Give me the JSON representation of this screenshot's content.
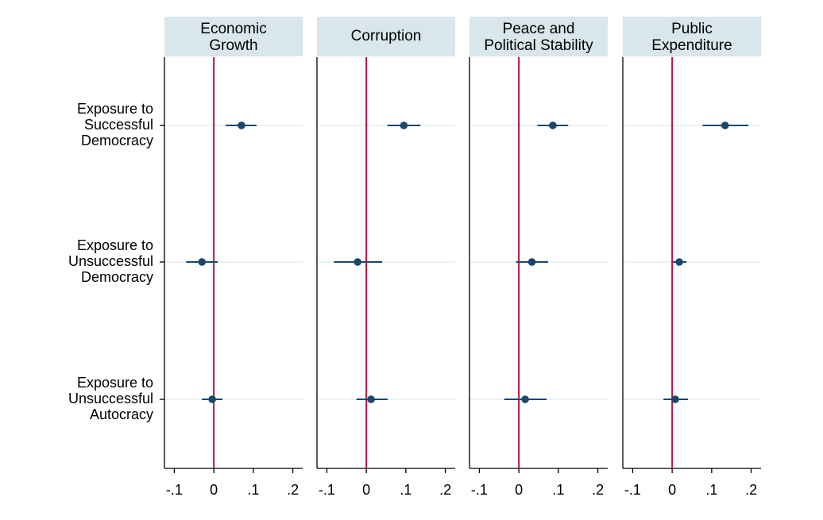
{
  "chart_data": {
    "type": "scatter",
    "subtype": "coefficient-plot",
    "panels": [
      {
        "title_lines": [
          "Economic",
          "Growth"
        ],
        "points": [
          {
            "estimate": 0.07,
            "ci": [
              0.03,
              0.108
            ]
          },
          {
            "estimate": -0.03,
            "ci": [
              -0.07,
              0.01
            ]
          },
          {
            "estimate": -0.004,
            "ci": [
              -0.03,
              0.022
            ]
          }
        ]
      },
      {
        "title_lines": [
          "Corruption"
        ],
        "points": [
          {
            "estimate": 0.095,
            "ci": [
              0.053,
              0.137
            ]
          },
          {
            "estimate": -0.022,
            "ci": [
              -0.082,
              0.04
            ]
          },
          {
            "estimate": 0.012,
            "ci": [
              -0.025,
              0.054
            ]
          }
        ]
      },
      {
        "title_lines": [
          "Peace and",
          "Political Stability"
        ],
        "points": [
          {
            "estimate": 0.086,
            "ci": [
              0.047,
              0.125
            ]
          },
          {
            "estimate": 0.033,
            "ci": [
              -0.007,
              0.074
            ]
          },
          {
            "estimate": 0.016,
            "ci": [
              -0.037,
              0.07
            ]
          }
        ]
      },
      {
        "title_lines": [
          "Public",
          "Expenditure"
        ],
        "points": [
          {
            "estimate": 0.134,
            "ci": [
              0.077,
              0.193
            ]
          },
          {
            "estimate": 0.018,
            "ci": [
              0.002,
              0.036
            ]
          },
          {
            "estimate": 0.008,
            "ci": [
              -0.022,
              0.04
            ]
          }
        ]
      }
    ],
    "categories": [
      [
        "Exposure to",
        "Successful",
        "Democracy"
      ],
      [
        "Exposure to",
        "Unsuccessful",
        "Democracy"
      ],
      [
        "Exposure to",
        "Unsuccessful",
        "Autocracy"
      ]
    ],
    "x_ticks": [
      {
        "value": -0.1,
        "label": "-.1"
      },
      {
        "value": 0,
        "label": "0"
      },
      {
        "value": 0.1,
        "label": ".1"
      },
      {
        "value": 0.2,
        "label": ".2"
      }
    ],
    "xlim": [
      -0.125,
      0.225
    ],
    "reference_line": 0,
    "colors": {
      "point": "#1a476f",
      "reference_line": "#b5133a",
      "title_bg": "#d9e6eb",
      "gridline": "#eaf2f3",
      "axis": "#000000"
    }
  }
}
